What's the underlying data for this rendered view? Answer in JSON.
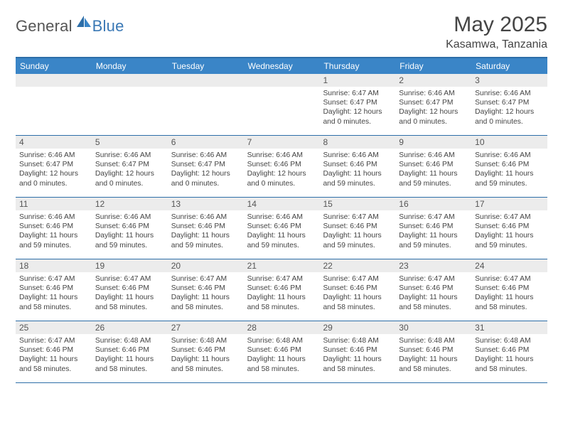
{
  "logo": {
    "general": "General",
    "blue": "Blue"
  },
  "title": "May 2025",
  "location": "Kasamwa, Tanzania",
  "colors": {
    "header_bar": "#3a85c7",
    "border": "#2d6ea8",
    "daynum_bg": "#ececec"
  },
  "weekdays": [
    "Sunday",
    "Monday",
    "Tuesday",
    "Wednesday",
    "Thursday",
    "Friday",
    "Saturday"
  ],
  "weeks": [
    [
      {
        "n": "",
        "sr": "",
        "ss": "",
        "dl": ""
      },
      {
        "n": "",
        "sr": "",
        "ss": "",
        "dl": ""
      },
      {
        "n": "",
        "sr": "",
        "ss": "",
        "dl": ""
      },
      {
        "n": "",
        "sr": "",
        "ss": "",
        "dl": ""
      },
      {
        "n": "1",
        "sr": "Sunrise: 6:47 AM",
        "ss": "Sunset: 6:47 PM",
        "dl": "Daylight: 12 hours and 0 minutes."
      },
      {
        "n": "2",
        "sr": "Sunrise: 6:46 AM",
        "ss": "Sunset: 6:47 PM",
        "dl": "Daylight: 12 hours and 0 minutes."
      },
      {
        "n": "3",
        "sr": "Sunrise: 6:46 AM",
        "ss": "Sunset: 6:47 PM",
        "dl": "Daylight: 12 hours and 0 minutes."
      }
    ],
    [
      {
        "n": "4",
        "sr": "Sunrise: 6:46 AM",
        "ss": "Sunset: 6:47 PM",
        "dl": "Daylight: 12 hours and 0 minutes."
      },
      {
        "n": "5",
        "sr": "Sunrise: 6:46 AM",
        "ss": "Sunset: 6:47 PM",
        "dl": "Daylight: 12 hours and 0 minutes."
      },
      {
        "n": "6",
        "sr": "Sunrise: 6:46 AM",
        "ss": "Sunset: 6:47 PM",
        "dl": "Daylight: 12 hours and 0 minutes."
      },
      {
        "n": "7",
        "sr": "Sunrise: 6:46 AM",
        "ss": "Sunset: 6:46 PM",
        "dl": "Daylight: 12 hours and 0 minutes."
      },
      {
        "n": "8",
        "sr": "Sunrise: 6:46 AM",
        "ss": "Sunset: 6:46 PM",
        "dl": "Daylight: 11 hours and 59 minutes."
      },
      {
        "n": "9",
        "sr": "Sunrise: 6:46 AM",
        "ss": "Sunset: 6:46 PM",
        "dl": "Daylight: 11 hours and 59 minutes."
      },
      {
        "n": "10",
        "sr": "Sunrise: 6:46 AM",
        "ss": "Sunset: 6:46 PM",
        "dl": "Daylight: 11 hours and 59 minutes."
      }
    ],
    [
      {
        "n": "11",
        "sr": "Sunrise: 6:46 AM",
        "ss": "Sunset: 6:46 PM",
        "dl": "Daylight: 11 hours and 59 minutes."
      },
      {
        "n": "12",
        "sr": "Sunrise: 6:46 AM",
        "ss": "Sunset: 6:46 PM",
        "dl": "Daylight: 11 hours and 59 minutes."
      },
      {
        "n": "13",
        "sr": "Sunrise: 6:46 AM",
        "ss": "Sunset: 6:46 PM",
        "dl": "Daylight: 11 hours and 59 minutes."
      },
      {
        "n": "14",
        "sr": "Sunrise: 6:46 AM",
        "ss": "Sunset: 6:46 PM",
        "dl": "Daylight: 11 hours and 59 minutes."
      },
      {
        "n": "15",
        "sr": "Sunrise: 6:47 AM",
        "ss": "Sunset: 6:46 PM",
        "dl": "Daylight: 11 hours and 59 minutes."
      },
      {
        "n": "16",
        "sr": "Sunrise: 6:47 AM",
        "ss": "Sunset: 6:46 PM",
        "dl": "Daylight: 11 hours and 59 minutes."
      },
      {
        "n": "17",
        "sr": "Sunrise: 6:47 AM",
        "ss": "Sunset: 6:46 PM",
        "dl": "Daylight: 11 hours and 59 minutes."
      }
    ],
    [
      {
        "n": "18",
        "sr": "Sunrise: 6:47 AM",
        "ss": "Sunset: 6:46 PM",
        "dl": "Daylight: 11 hours and 58 minutes."
      },
      {
        "n": "19",
        "sr": "Sunrise: 6:47 AM",
        "ss": "Sunset: 6:46 PM",
        "dl": "Daylight: 11 hours and 58 minutes."
      },
      {
        "n": "20",
        "sr": "Sunrise: 6:47 AM",
        "ss": "Sunset: 6:46 PM",
        "dl": "Daylight: 11 hours and 58 minutes."
      },
      {
        "n": "21",
        "sr": "Sunrise: 6:47 AM",
        "ss": "Sunset: 6:46 PM",
        "dl": "Daylight: 11 hours and 58 minutes."
      },
      {
        "n": "22",
        "sr": "Sunrise: 6:47 AM",
        "ss": "Sunset: 6:46 PM",
        "dl": "Daylight: 11 hours and 58 minutes."
      },
      {
        "n": "23",
        "sr": "Sunrise: 6:47 AM",
        "ss": "Sunset: 6:46 PM",
        "dl": "Daylight: 11 hours and 58 minutes."
      },
      {
        "n": "24",
        "sr": "Sunrise: 6:47 AM",
        "ss": "Sunset: 6:46 PM",
        "dl": "Daylight: 11 hours and 58 minutes."
      }
    ],
    [
      {
        "n": "25",
        "sr": "Sunrise: 6:47 AM",
        "ss": "Sunset: 6:46 PM",
        "dl": "Daylight: 11 hours and 58 minutes."
      },
      {
        "n": "26",
        "sr": "Sunrise: 6:48 AM",
        "ss": "Sunset: 6:46 PM",
        "dl": "Daylight: 11 hours and 58 minutes."
      },
      {
        "n": "27",
        "sr": "Sunrise: 6:48 AM",
        "ss": "Sunset: 6:46 PM",
        "dl": "Daylight: 11 hours and 58 minutes."
      },
      {
        "n": "28",
        "sr": "Sunrise: 6:48 AM",
        "ss": "Sunset: 6:46 PM",
        "dl": "Daylight: 11 hours and 58 minutes."
      },
      {
        "n": "29",
        "sr": "Sunrise: 6:48 AM",
        "ss": "Sunset: 6:46 PM",
        "dl": "Daylight: 11 hours and 58 minutes."
      },
      {
        "n": "30",
        "sr": "Sunrise: 6:48 AM",
        "ss": "Sunset: 6:46 PM",
        "dl": "Daylight: 11 hours and 58 minutes."
      },
      {
        "n": "31",
        "sr": "Sunrise: 6:48 AM",
        "ss": "Sunset: 6:46 PM",
        "dl": "Daylight: 11 hours and 58 minutes."
      }
    ]
  ]
}
